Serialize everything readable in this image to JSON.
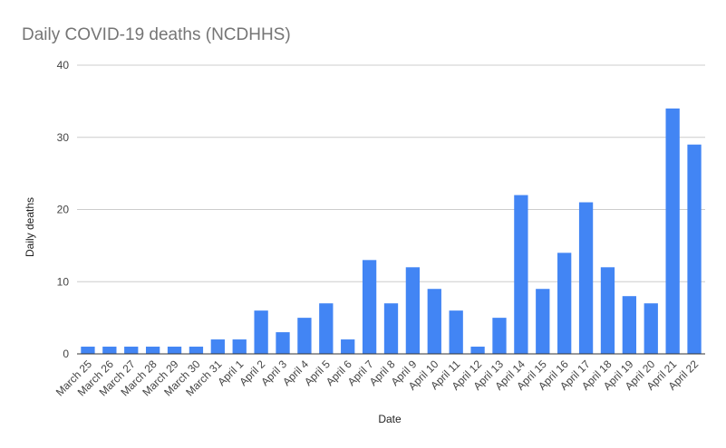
{
  "chart_data": {
    "type": "bar",
    "title": "Daily COVID-19 deaths (NCDHHS)",
    "xlabel": "Date",
    "ylabel": "Daily deaths",
    "ylim": [
      0,
      40
    ],
    "yticks": [
      0,
      10,
      20,
      30,
      40
    ],
    "grid": true,
    "legend": "none",
    "bar_color": "#4285f4",
    "categories": [
      "March 25",
      "March 26",
      "March 27",
      "March 28",
      "March 29",
      "March 30",
      "March 31",
      "April 1",
      "April 2",
      "April 3",
      "April 4",
      "April 5",
      "April 6",
      "April 7",
      "April 8",
      "April 9",
      "April 10",
      "April 11",
      "April 12",
      "April 13",
      "April 14",
      "April 15",
      "April 16",
      "April 17",
      "April 18",
      "April 19",
      "April 20",
      "April 21",
      "April 22"
    ],
    "values": [
      1,
      1,
      1,
      1,
      1,
      1,
      2,
      2,
      6,
      3,
      5,
      7,
      2,
      13,
      7,
      12,
      9,
      6,
      1,
      5,
      22,
      9,
      14,
      21,
      12,
      8,
      7,
      34,
      29
    ]
  }
}
